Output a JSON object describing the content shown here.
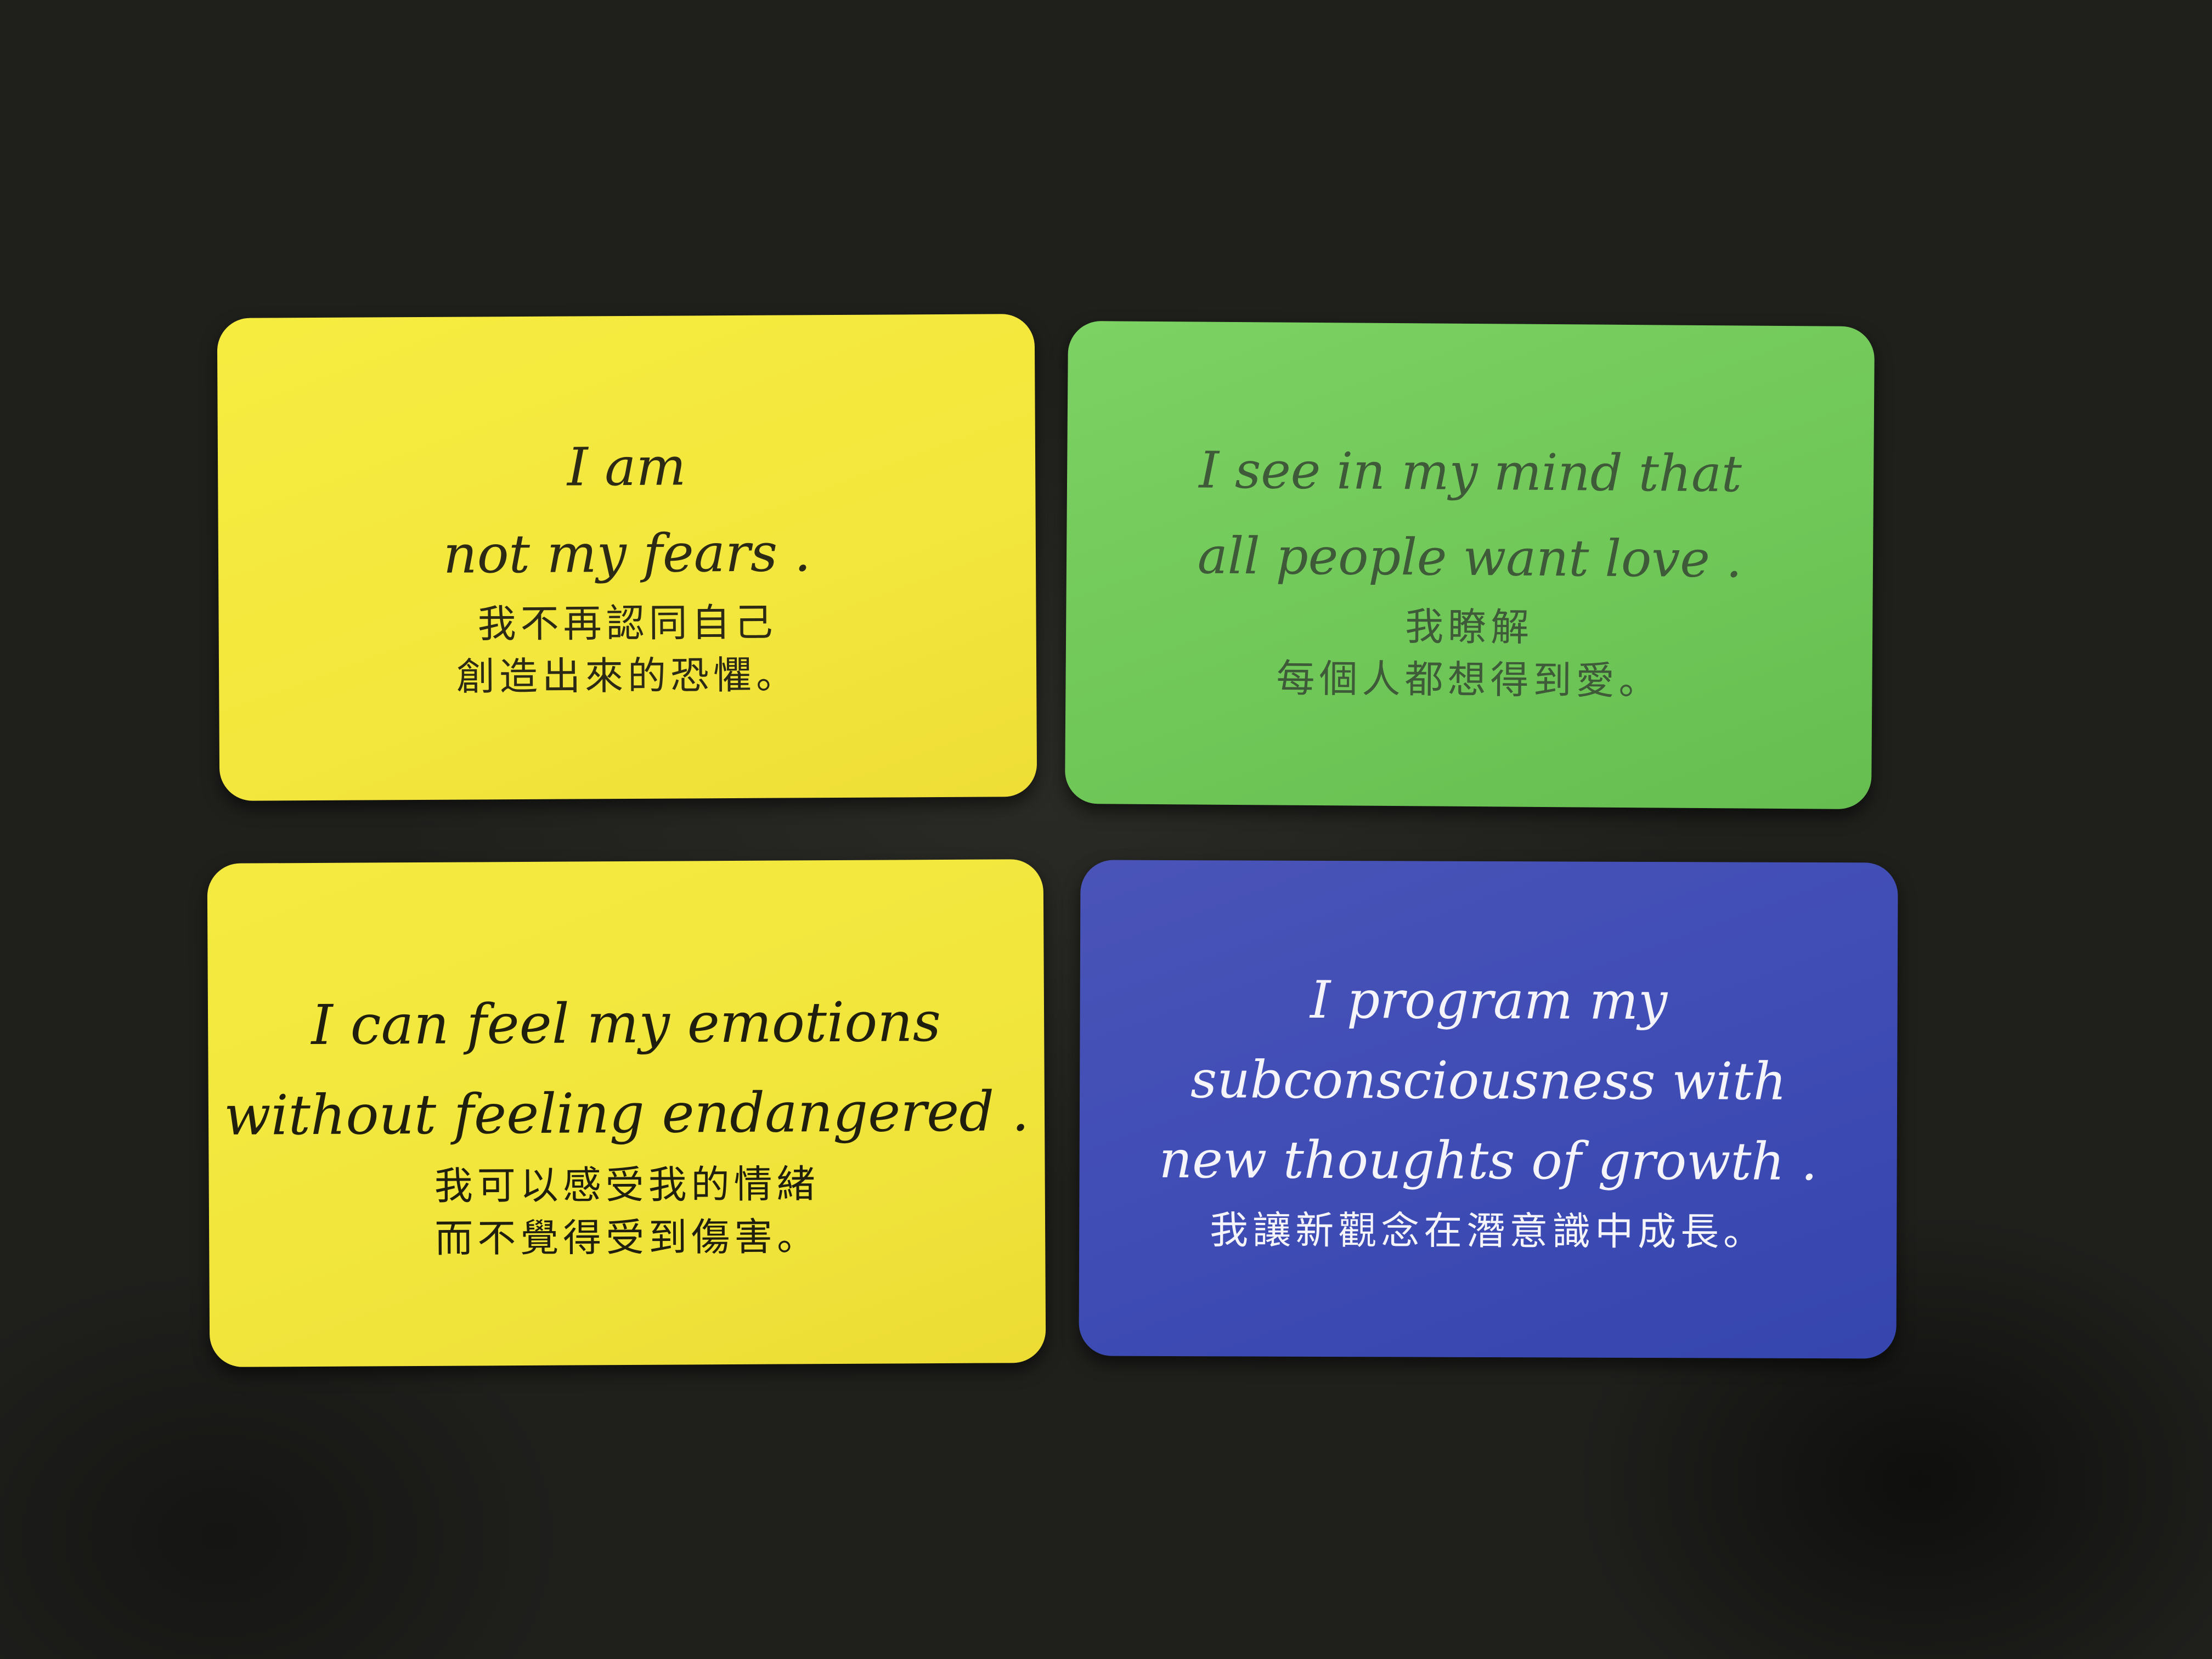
{
  "cards": [
    {
      "color": "#f3e63c",
      "english": [
        "I am",
        "not my fears ."
      ],
      "chinese": [
        "我不再認同自己",
        "創造出來的恐懼。"
      ]
    },
    {
      "color": "#6fc758",
      "english": [
        "I see in my mind that",
        "all people want love ."
      ],
      "chinese": [
        "我瞭解",
        "每個人都想得到愛。"
      ]
    },
    {
      "color": "#f1e53c",
      "english": [
        "I can feel my emotions",
        "without feeling endangered ."
      ],
      "chinese": [
        "我可以感受我的情緒",
        "而不覺得受到傷害。"
      ]
    },
    {
      "color": "#3e4cb4",
      "english": [
        "I program my",
        "subconsciousness with",
        "new thoughts of growth ."
      ],
      "chinese": [
        "我讓新觀念在潛意識中成長。"
      ]
    }
  ]
}
